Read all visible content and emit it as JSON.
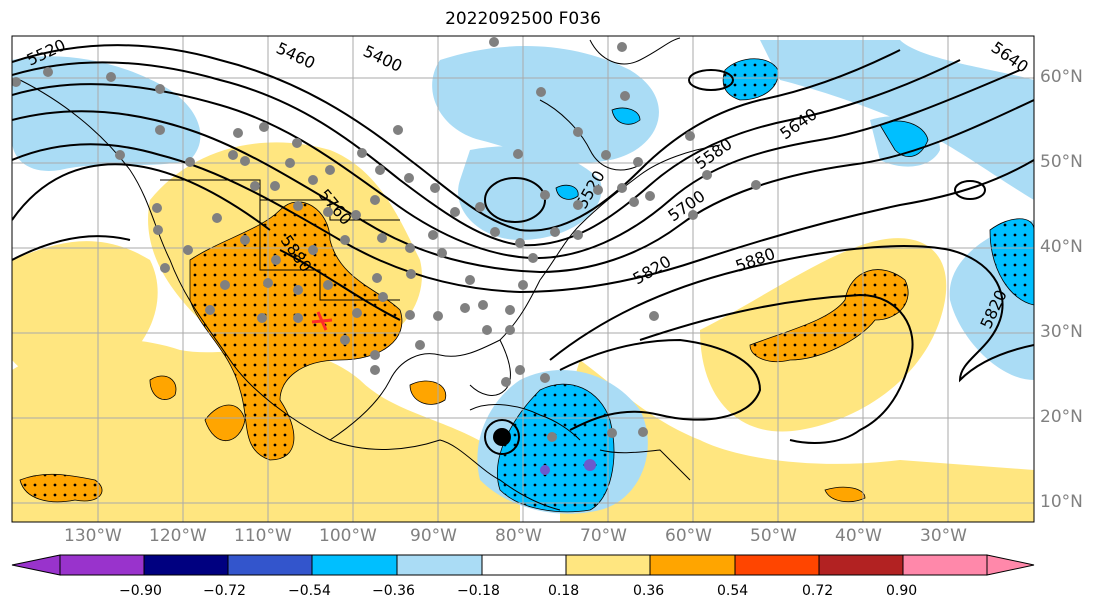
{
  "title": "2022092500 F036",
  "lat_labels": [
    "60°N",
    "50°N",
    "40°N",
    "30°N",
    "20°N",
    "10°N"
  ],
  "lon_labels": [
    "130°W",
    "120°W",
    "110°W",
    "100°W",
    "90°W",
    "80°W",
    "70°W",
    "60°W",
    "50°W",
    "40°W",
    "30°W"
  ],
  "contour_labels": [
    "5520",
    "5460",
    "5400",
    "5640",
    "5640",
    "5580",
    "5520",
    "5760",
    "5700",
    "5880",
    "5820",
    "5880",
    "5820"
  ],
  "colorbar": {
    "ticks": [
      "−0.90",
      "−0.72",
      "−0.54",
      "−0.36",
      "−0.18",
      "0.18",
      "0.36",
      "0.54",
      "0.72",
      "0.90"
    ],
    "colors": [
      "#9933cc",
      "#000080",
      "#3355cc",
      "#00bfff",
      "#aadcf5",
      "#ffffff",
      "#ffe680",
      "#ffa500",
      "#ff4500",
      "#b22222",
      "#ff88aa"
    ]
  },
  "colors": {
    "positive_light": "#ffe680",
    "positive_strong": "#ffa500",
    "negative_light": "#aadcf5",
    "negative_strong": "#00bfff",
    "negative_extreme": "#6a5acd",
    "station_dot": "#808080",
    "storm_marker": "#000000"
  },
  "icons": {
    "storm_marker": "tropical-cyclone-icon",
    "station": "station-dot-icon"
  }
}
